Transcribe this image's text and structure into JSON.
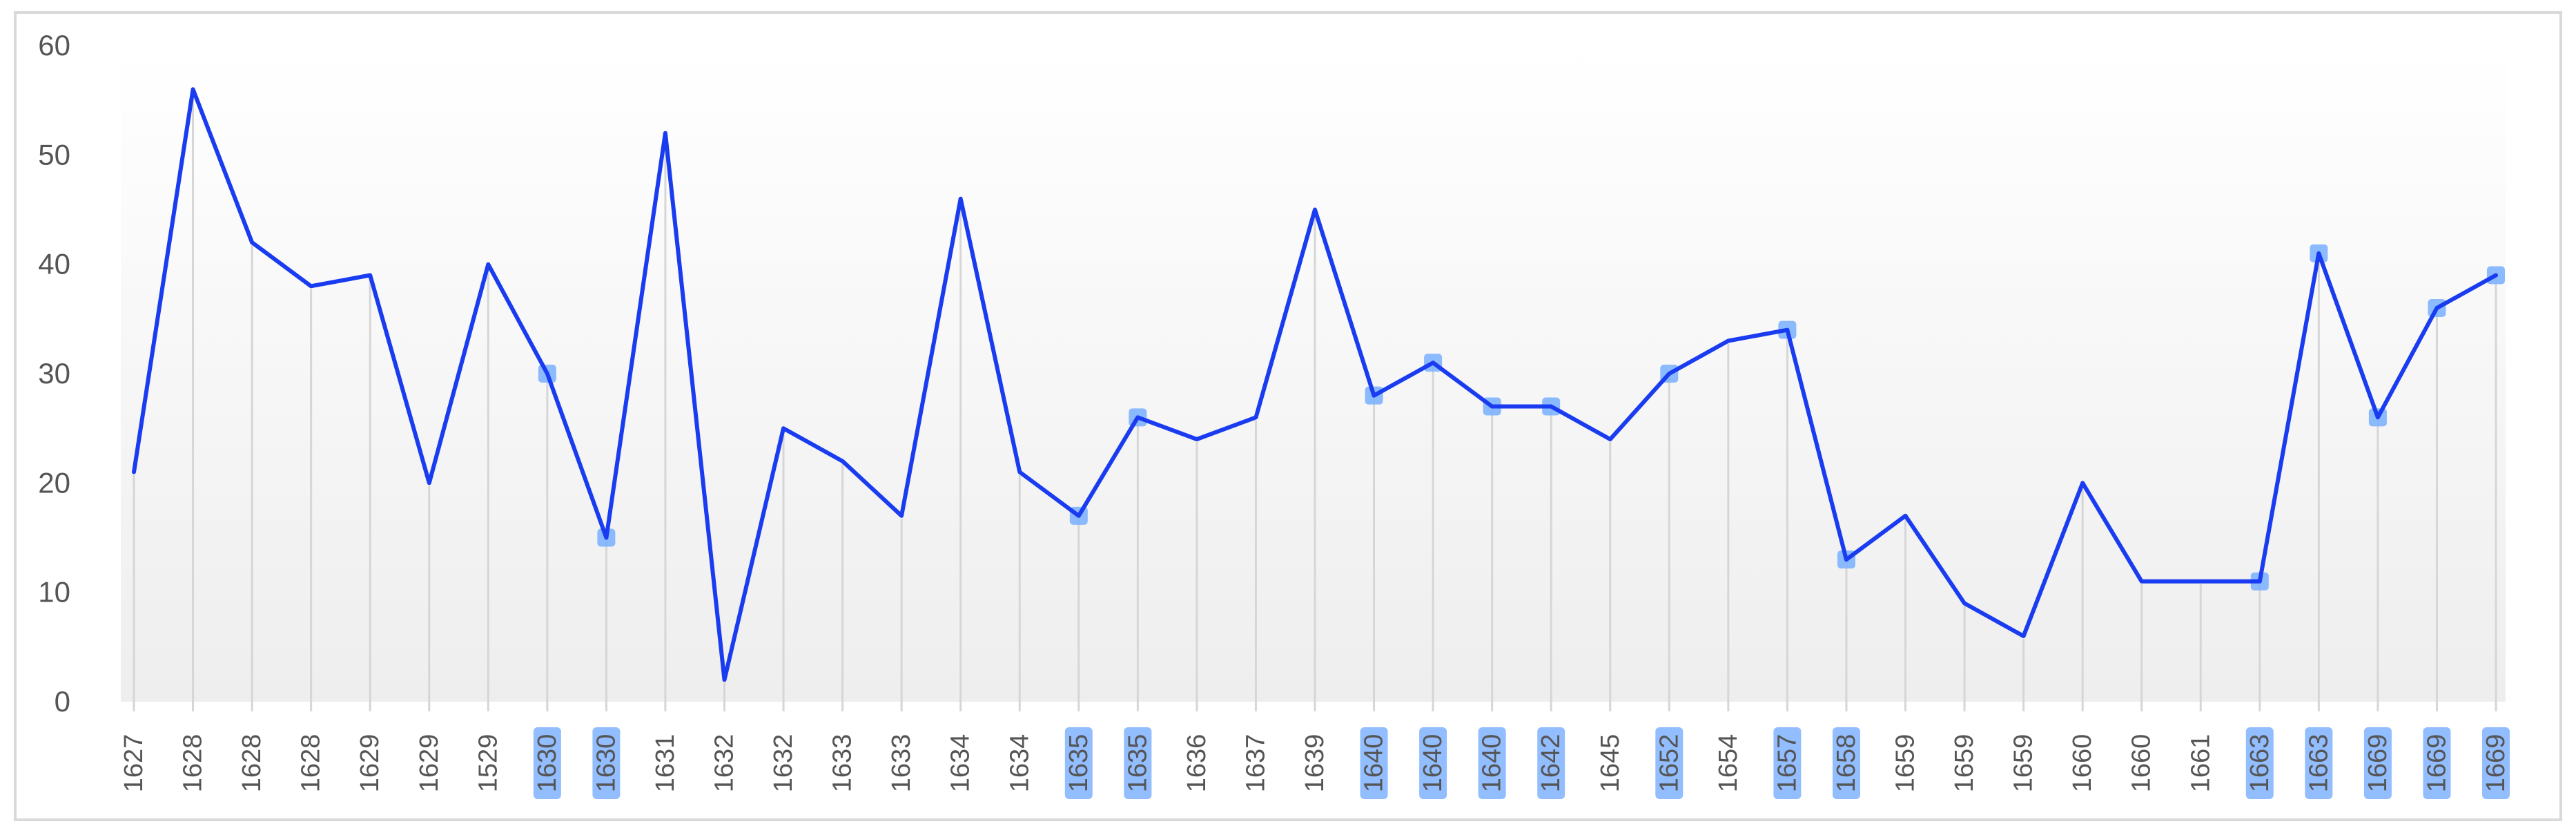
{
  "chart_data": {
    "type": "line",
    "title": "",
    "xlabel": "",
    "ylabel": "",
    "ylim": [
      0,
      60
    ],
    "yticks": [
      "0",
      "10",
      "20",
      "30",
      "40",
      "50",
      "60"
    ],
    "grid": "vertical lines at each category",
    "line_color": "#1a3cf0",
    "highlight_color": "#7fb2ff",
    "categories": [
      "1627",
      "1628",
      "1628",
      "1628",
      "1629",
      "1629",
      "1529",
      "1630",
      "1630",
      "1631",
      "1632",
      "1632",
      "1633",
      "1633",
      "1634",
      "1634",
      "1635",
      "1635",
      "1636",
      "1637",
      "1639",
      "1640",
      "1640",
      "1640",
      "1642",
      "1645",
      "1652",
      "1654",
      "1657",
      "1658",
      "1659",
      "1659",
      "1659",
      "1660",
      "1660",
      "1661",
      "1663",
      "1663",
      "1669",
      "1669",
      "1669"
    ],
    "series": [
      {
        "values": [
          21,
          56,
          42,
          38,
          39,
          20,
          40,
          30,
          15,
          52,
          2,
          25,
          22,
          17,
          46,
          21,
          17,
          26,
          24,
          26,
          45,
          28,
          31,
          27,
          27,
          24,
          30,
          33,
          34,
          13,
          17,
          9,
          6,
          20,
          11,
          11,
          11,
          41,
          26,
          36,
          39
        ]
      }
    ],
    "highlighted": [
      false,
      false,
      false,
      false,
      false,
      false,
      false,
      true,
      true,
      false,
      false,
      false,
      false,
      false,
      false,
      false,
      true,
      true,
      false,
      false,
      false,
      true,
      true,
      true,
      true,
      false,
      true,
      false,
      true,
      true,
      false,
      false,
      false,
      false,
      false,
      false,
      true,
      true,
      true,
      true,
      true
    ]
  }
}
